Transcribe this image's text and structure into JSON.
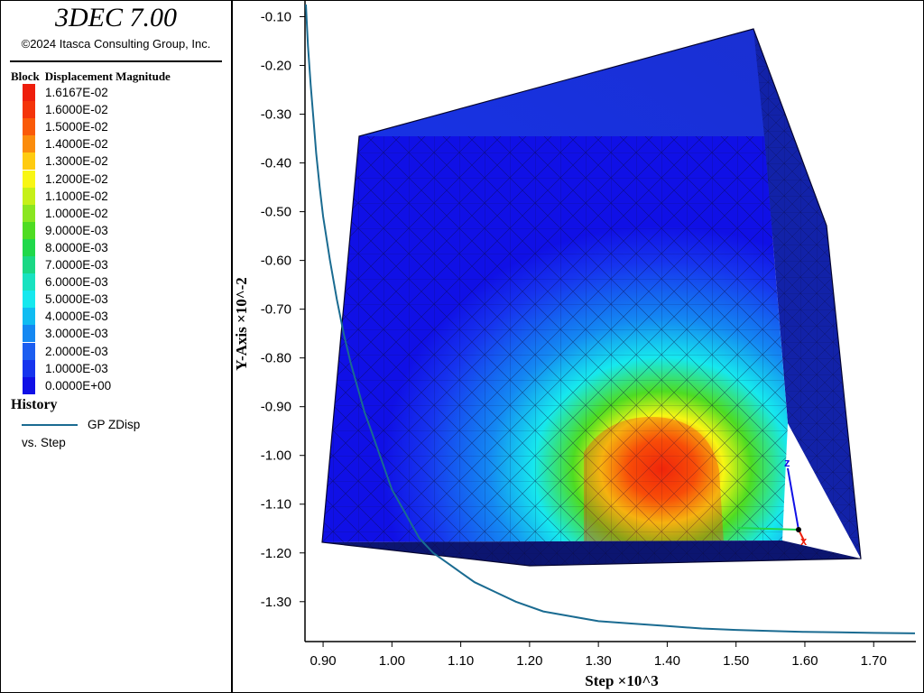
{
  "app": {
    "title": "3DEC 7.00",
    "copyright": "©2024 Itasca Consulting Group, Inc."
  },
  "legend": {
    "heading_left": "Block",
    "heading_right": "Displacement Magnitude",
    "entries": [
      {
        "label": "1.6167E-02",
        "color": "#ee1e0c"
      },
      {
        "label": "1.6000E-02",
        "color": "#f4340a"
      },
      {
        "label": "1.5000E-02",
        "color": "#fa5a08"
      },
      {
        "label": "1.4000E-02",
        "color": "#fb8c0c"
      },
      {
        "label": "1.3000E-02",
        "color": "#ffcb10"
      },
      {
        "label": "1.2000E-02",
        "color": "#f8f614"
      },
      {
        "label": "1.1000E-02",
        "color": "#c6f018"
      },
      {
        "label": "1.0000E-02",
        "color": "#8ae620"
      },
      {
        "label": "9.0000E-03",
        "color": "#4edc22"
      },
      {
        "label": "8.0000E-03",
        "color": "#20d84a"
      },
      {
        "label": "7.0000E-03",
        "color": "#1ad884"
      },
      {
        "label": "6.0000E-03",
        "color": "#18e2c0"
      },
      {
        "label": "5.0000E-03",
        "color": "#16e8ee"
      },
      {
        "label": "4.0000E-03",
        "color": "#10bcf2"
      },
      {
        "label": "3.0000E-03",
        "color": "#1488f2"
      },
      {
        "label": "2.0000E-03",
        "color": "#1c5ef0"
      },
      {
        "label": "1.0000E-03",
        "color": "#1634ee"
      },
      {
        "label": "0.0000E+00",
        "color": "#1010e6"
      }
    ]
  },
  "history": {
    "title": "History",
    "series_label": "GP ZDisp",
    "versus_label": "vs. Step",
    "line_color": "#1a6b91"
  },
  "chart_data": {
    "type": "line",
    "xlabel": "Step ×10^3",
    "ylabel": "Y-Axis ×10^-2",
    "xlim": [
      0.875,
      1.76
    ],
    "ylim": [
      -1.38,
      -0.075
    ],
    "xticks": [
      "0.90",
      "1.00",
      "1.10",
      "1.20",
      "1.30",
      "1.40",
      "1.50",
      "1.60",
      "1.70"
    ],
    "yticks": [
      "-0.10",
      "-0.20",
      "-0.30",
      "-0.40",
      "-0.50",
      "-0.60",
      "-0.70",
      "-0.80",
      "-0.90",
      "-1.00",
      "-1.10",
      "-1.20",
      "-1.30"
    ],
    "series": [
      {
        "name": "GP ZDisp",
        "x": [
          0.875,
          0.878,
          0.882,
          0.886,
          0.89,
          0.895,
          0.9,
          0.91,
          0.92,
          0.93,
          0.94,
          0.95,
          0.96,
          0.97,
          0.98,
          0.99,
          1.0,
          1.02,
          1.04,
          1.06,
          1.08,
          1.1,
          1.12,
          1.15,
          1.18,
          1.22,
          1.26,
          1.3,
          1.35,
          1.4,
          1.45,
          1.5,
          1.55,
          1.6,
          1.65,
          1.7,
          1.76
        ],
        "y": [
          -0.075,
          -0.16,
          -0.24,
          -0.31,
          -0.38,
          -0.45,
          -0.51,
          -0.6,
          -0.68,
          -0.75,
          -0.81,
          -0.86,
          -0.91,
          -0.95,
          -0.99,
          -1.03,
          -1.07,
          -1.12,
          -1.17,
          -1.2,
          -1.22,
          -1.24,
          -1.26,
          -1.28,
          -1.3,
          -1.32,
          -1.33,
          -1.34,
          -1.345,
          -1.35,
          -1.355,
          -1.358,
          -1.36,
          -1.362,
          -1.363,
          -1.364,
          -1.365
        ]
      }
    ]
  }
}
